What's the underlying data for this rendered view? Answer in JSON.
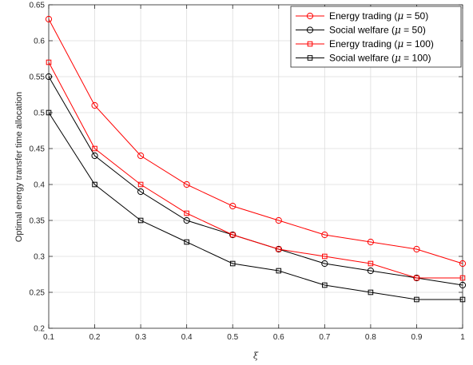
{
  "chart_data": {
    "type": "line",
    "title": "",
    "xlabel": "ξ",
    "ylabel": "Optimal energy transfer time allocation",
    "xlim": [
      0.1,
      1
    ],
    "ylim": [
      0.2,
      0.65
    ],
    "grid": true,
    "legend_position": "top-right",
    "x": [
      0.1,
      0.2,
      0.3,
      0.4,
      0.5,
      0.6,
      0.7,
      0.8,
      0.9,
      1
    ],
    "x_tick_labels": [
      "0.1",
      "0.2",
      "0.3",
      "0.4",
      "0.5",
      "0.6",
      "0.7",
      "0.8",
      "0.9",
      "1"
    ],
    "y_ticks": [
      0.2,
      0.25,
      0.3,
      0.35,
      0.4,
      0.45,
      0.5,
      0.55,
      0.6,
      0.65
    ],
    "y_tick_labels": [
      "0.2",
      "0.25",
      "0.3",
      "0.35",
      "0.4",
      "0.45",
      "0.5",
      "0.55",
      "0.6",
      "0.65"
    ],
    "series": [
      {
        "legend_prefix": "Energy trading (",
        "legend_suffix": " = 50)",
        "values": [
          0.63,
          0.51,
          0.44,
          0.4,
          0.37,
          0.35,
          0.33,
          0.32,
          0.31,
          0.29
        ],
        "color": "#ff0000",
        "marker": "circle"
      },
      {
        "legend_prefix": "Social welfare (",
        "legend_suffix": " = 50)",
        "values": [
          0.55,
          0.44,
          0.39,
          0.35,
          0.33,
          0.31,
          0.29,
          0.28,
          0.27,
          0.26
        ],
        "color": "#000000",
        "marker": "circle"
      },
      {
        "legend_prefix": "Energy trading (",
        "legend_suffix": " = 100)",
        "values": [
          0.57,
          0.45,
          0.4,
          0.36,
          0.33,
          0.31,
          0.3,
          0.29,
          0.27,
          0.27
        ],
        "color": "#ff0000",
        "marker": "square"
      },
      {
        "legend_prefix": "Social welfare (",
        "legend_suffix": " = 100)",
        "values": [
          0.5,
          0.4,
          0.35,
          0.32,
          0.29,
          0.28,
          0.26,
          0.25,
          0.24,
          0.24
        ],
        "color": "#000000",
        "marker": "square"
      }
    ],
    "legend_symbol": "μ"
  }
}
